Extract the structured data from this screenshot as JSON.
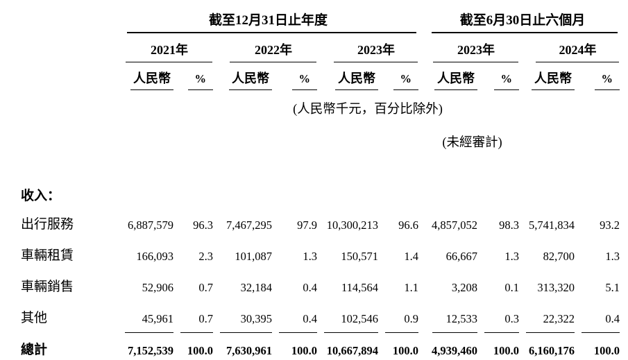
{
  "document": {
    "period_groups": {
      "annual": "截至12月31日止年度",
      "interim": "截至6月30日止六個月"
    },
    "year_headers": [
      "2021年",
      "2022年",
      "2023年",
      "2023年",
      "2024年"
    ],
    "sub_headers": {
      "currency": "人民幣",
      "percent": "%"
    },
    "notes": {
      "units": "(人民幣千元，百分比除外)",
      "unaudited": "(未經審計)"
    },
    "section_label": "收入：",
    "rows": [
      {
        "label": "出行服務",
        "values": [
          "6,887,579",
          "96.3",
          "7,467,295",
          "97.9",
          "10,300,213",
          "96.6",
          "4,857,052",
          "98.3",
          "5,741,834",
          "93.2"
        ]
      },
      {
        "label": "車輛租賃",
        "values": [
          "166,093",
          "2.3",
          "101,087",
          "1.3",
          "150,571",
          "1.4",
          "66,667",
          "1.3",
          "82,700",
          "1.3"
        ]
      },
      {
        "label": "車輛銷售",
        "values": [
          "52,906",
          "0.7",
          "32,184",
          "0.4",
          "114,564",
          "1.1",
          "3,208",
          "0.1",
          "313,320",
          "5.1"
        ]
      },
      {
        "label": "其他",
        "values": [
          "45,961",
          "0.7",
          "30,395",
          "0.4",
          "102,546",
          "0.9",
          "12,533",
          "0.3",
          "22,322",
          "0.4"
        ]
      }
    ],
    "total": {
      "label": "總計",
      "values": [
        "7,152,539",
        "100.0",
        "7,630,961",
        "100.0",
        "10,667,894",
        "100.0",
        "4,939,460",
        "100.0",
        "6,160,176",
        "100.0"
      ]
    }
  }
}
